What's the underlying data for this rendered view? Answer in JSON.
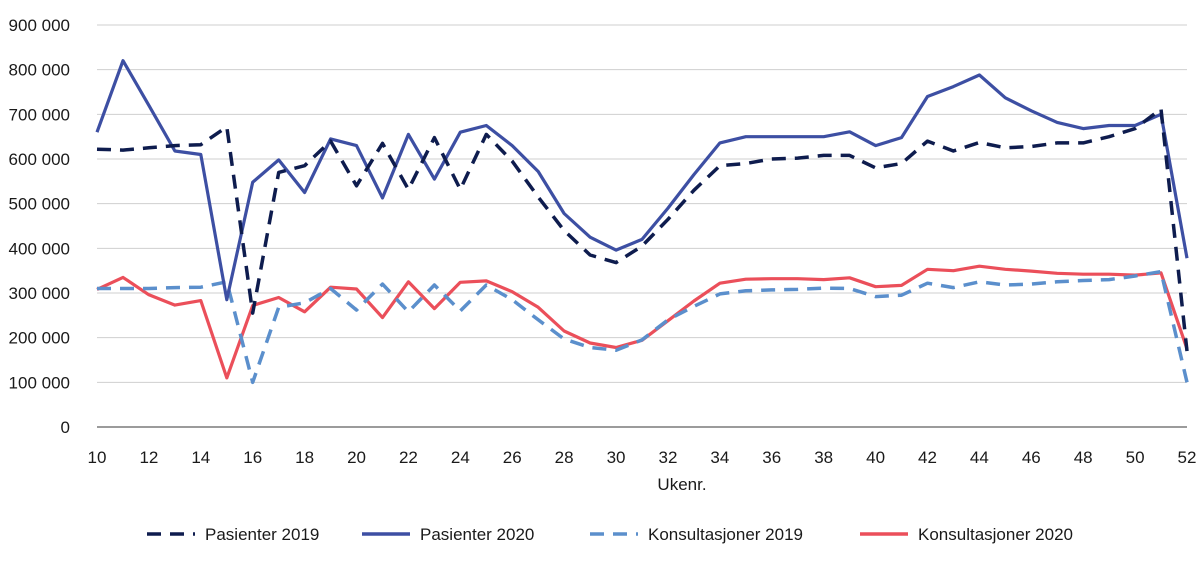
{
  "chart_data": {
    "type": "line",
    "title": "",
    "xlabel": "Ukenr.",
    "ylabel": "",
    "ylim": [
      0,
      900000
    ],
    "yticks": [
      0,
      100000,
      200000,
      300000,
      400000,
      500000,
      600000,
      700000,
      800000,
      900000
    ],
    "ytick_labels": [
      "0",
      "100 000",
      "200 000",
      "300 000",
      "400 000",
      "500 000",
      "600 000",
      "700 000",
      "800 000",
      "900 000"
    ],
    "xlim": [
      10,
      52
    ],
    "xticks": [
      10,
      12,
      14,
      16,
      18,
      20,
      22,
      24,
      26,
      28,
      30,
      32,
      34,
      36,
      38,
      40,
      42,
      44,
      46,
      48,
      50,
      52
    ],
    "xtick_labels": [
      "10",
      "12",
      "14",
      "16",
      "18",
      "20",
      "22",
      "24",
      "26",
      "28",
      "30",
      "32",
      "34",
      "36",
      "38",
      "40",
      "42",
      "44",
      "46",
      "48",
      "50",
      "52"
    ],
    "grid": "horizontal",
    "legend_position": "bottom",
    "x": [
      10,
      11,
      12,
      13,
      14,
      15,
      16,
      17,
      18,
      19,
      20,
      21,
      22,
      23,
      24,
      25,
      26,
      27,
      28,
      29,
      30,
      31,
      32,
      33,
      34,
      35,
      36,
      37,
      38,
      39,
      40,
      41,
      42,
      43,
      44,
      45,
      46,
      47,
      48,
      49,
      50,
      51,
      52
    ],
    "series": [
      {
        "name": "Pasienter 2019",
        "color": "#0e1c4e",
        "dash": "dashed",
        "values": [
          622000,
          620000,
          625000,
          630000,
          632000,
          672000,
          255000,
          570000,
          585000,
          640000,
          540000,
          635000,
          532000,
          648000,
          532000,
          655000,
          595000,
          515000,
          440000,
          385000,
          368000,
          405000,
          465000,
          530000,
          585000,
          590000,
          600000,
          602000,
          608000,
          608000,
          580000,
          590000,
          640000,
          618000,
          637000,
          625000,
          628000,
          636000,
          636000,
          650000,
          668000,
          712000,
          170000
        ]
      },
      {
        "name": "Pasienter 2020",
        "color": "#3d4fa3",
        "dash": "solid",
        "values": [
          660000,
          820000,
          720000,
          618000,
          610000,
          285000,
          548000,
          598000,
          525000,
          645000,
          630000,
          513000,
          655000,
          555000,
          660000,
          675000,
          630000,
          572000,
          478000,
          425000,
          396000,
          420000,
          490000,
          565000,
          636000,
          650000,
          650000,
          650000,
          650000,
          661000,
          630000,
          648000,
          740000,
          762000,
          788000,
          737000,
          708000,
          682000,
          668000,
          675000,
          675000,
          700000,
          378000
        ]
      },
      {
        "name": "Konsultasjoner  2019",
        "color": "#5b8fcc",
        "dash": "dashed",
        "values": [
          310000,
          310000,
          310000,
          312000,
          313000,
          325000,
          100000,
          268000,
          278000,
          310000,
          262000,
          320000,
          258000,
          318000,
          260000,
          318000,
          285000,
          240000,
          197000,
          178000,
          172000,
          195000,
          240000,
          270000,
          298000,
          305000,
          307000,
          308000,
          311000,
          310000,
          292000,
          295000,
          322000,
          312000,
          325000,
          318000,
          320000,
          325000,
          328000,
          330000,
          338000,
          348000,
          100000
        ]
      },
      {
        "name": "Konsultasjoner  2020",
        "color": "#eb4f5a",
        "dash": "solid",
        "values": [
          308000,
          335000,
          296000,
          273000,
          283000,
          110000,
          272000,
          290000,
          258000,
          313000,
          309000,
          245000,
          325000,
          265000,
          324000,
          327000,
          303000,
          268000,
          215000,
          188000,
          178000,
          194000,
          238000,
          282000,
          322000,
          331000,
          332000,
          332000,
          330000,
          334000,
          314000,
          317000,
          353000,
          350000,
          360000,
          353000,
          349000,
          344000,
          342000,
          342000,
          340000,
          345000,
          175000
        ]
      }
    ]
  }
}
